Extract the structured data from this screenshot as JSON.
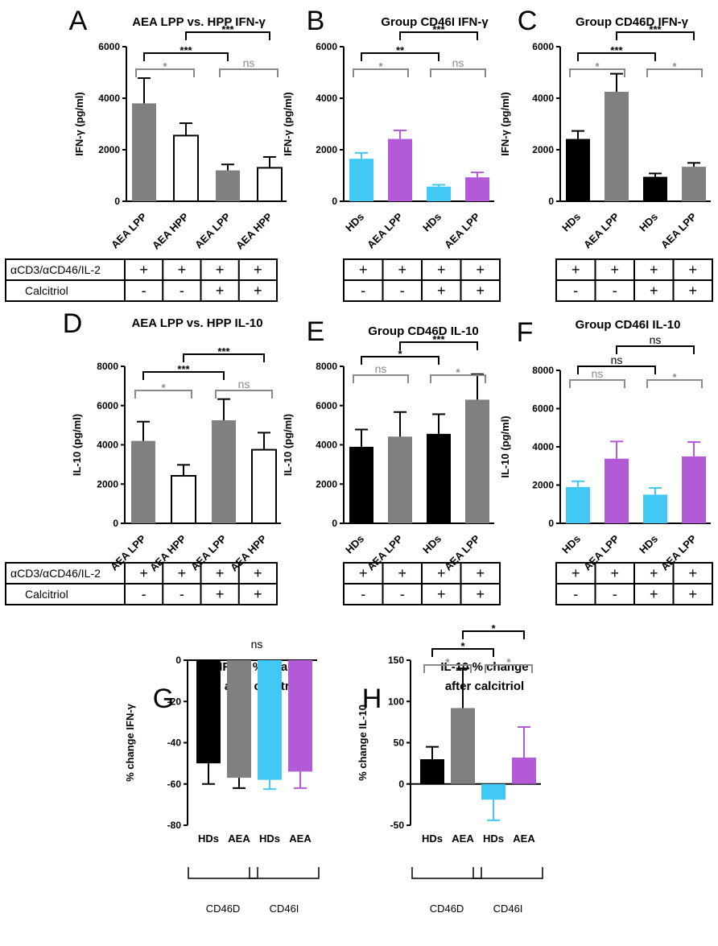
{
  "colors": {
    "grey": "#808080",
    "cyan": "#41c8f5",
    "purple": "#b35ad6",
    "black": "#000000",
    "white": "#ffffff",
    "sig_grey": "#8a8a8a"
  },
  "table": {
    "row1_label": "αCD3/αCD46/IL-2",
    "row2_label": "Calcitriol",
    "row1": [
      "+",
      "+",
      "+",
      "+"
    ],
    "row2": [
      "-",
      "-",
      "+",
      "+"
    ]
  },
  "chart_data": [
    {
      "id": "A",
      "type": "bar",
      "title": "AEA LPP vs. HPP IFN-γ",
      "ylabel": "IFN-γ (pg/ml)",
      "ylim": [
        0,
        6000
      ],
      "yticks": [
        0,
        2000,
        4000,
        6000
      ],
      "categories": [
        "AEA LPP",
        "AEA HPP",
        "AEA LPP",
        "AEA HPP"
      ],
      "values": [
        3800,
        2550,
        1200,
        1300
      ],
      "errors": [
        980,
        480,
        230,
        420
      ],
      "fills": [
        "grey",
        "white",
        "grey",
        "white"
      ],
      "sig": [
        {
          "from": 0,
          "to": 1,
          "level": 1,
          "label": "*",
          "color": "sig_grey"
        },
        {
          "from": 2,
          "to": 3,
          "level": 1,
          "label": "ns",
          "color": "sig_grey"
        },
        {
          "from": 0,
          "to": 2,
          "level": 2,
          "label": "***",
          "color": "black"
        },
        {
          "from": 1,
          "to": 3,
          "level": 3,
          "label": "***",
          "color": "black"
        }
      ],
      "table": true
    },
    {
      "id": "B",
      "type": "bar",
      "title": "Group CD46I IFN-γ",
      "ylabel": "IFN-γ (pg/ml)",
      "ylim": [
        0,
        6000
      ],
      "yticks": [
        0,
        2000,
        4000,
        6000
      ],
      "categories": [
        "HDs",
        "AEA LPP",
        "HDs",
        "AEA LPP"
      ],
      "values": [
        1650,
        2420,
        570,
        930
      ],
      "errors": [
        230,
        330,
        70,
        190
      ],
      "fills": [
        "cyan",
        "purple",
        "cyan",
        "purple"
      ],
      "sig": [
        {
          "from": 0,
          "to": 1,
          "level": 1,
          "label": "*",
          "color": "sig_grey"
        },
        {
          "from": 2,
          "to": 3,
          "level": 1,
          "label": "ns",
          "color": "sig_grey"
        },
        {
          "from": 0,
          "to": 2,
          "level": 2,
          "label": "**",
          "color": "black"
        },
        {
          "from": 1,
          "to": 3,
          "level": 3,
          "label": "***",
          "color": "black"
        }
      ],
      "table": true
    },
    {
      "id": "C",
      "type": "bar",
      "title": "Group CD46D IFN-γ",
      "ylabel": "IFN-γ (pg/ml)",
      "ylim": [
        0,
        6000
      ],
      "yticks": [
        0,
        2000,
        4000,
        6000
      ],
      "categories": [
        "HDs",
        "AEA LPP",
        "HDs",
        "AEA LPP"
      ],
      "values": [
        2420,
        4250,
        950,
        1340
      ],
      "errors": [
        310,
        700,
        130,
        150
      ],
      "fills": [
        "black",
        "grey",
        "black",
        "grey"
      ],
      "sig": [
        {
          "from": 0,
          "to": 1,
          "level": 1,
          "label": "*",
          "color": "sig_grey"
        },
        {
          "from": 2,
          "to": 3,
          "level": 1,
          "label": "*",
          "color": "sig_grey"
        },
        {
          "from": 0,
          "to": 2,
          "level": 2,
          "label": "***",
          "color": "black"
        },
        {
          "from": 1,
          "to": 3,
          "level": 3,
          "label": "***",
          "color": "black"
        }
      ],
      "table": true
    },
    {
      "id": "D",
      "type": "bar",
      "title": "AEA LPP vs. HPP IL-10",
      "ylabel": "IL-10 (pg/ml)",
      "ylim": [
        0,
        8000
      ],
      "yticks": [
        0,
        2000,
        4000,
        6000,
        8000
      ],
      "categories": [
        "AEA LPP",
        "AEA HPP",
        "AEA LPP",
        "AEA HPP"
      ],
      "values": [
        4200,
        2420,
        5250,
        3750
      ],
      "errors": [
        980,
        560,
        1080,
        870
      ],
      "fills": [
        "grey",
        "white",
        "grey",
        "white"
      ],
      "sig": [
        {
          "from": 0,
          "to": 1,
          "level": 1,
          "label": "*",
          "color": "sig_grey"
        },
        {
          "from": 2,
          "to": 3,
          "level": 1,
          "label": "ns",
          "color": "sig_grey"
        },
        {
          "from": 0,
          "to": 2,
          "level": 2,
          "label": "***",
          "color": "black"
        },
        {
          "from": 1,
          "to": 3,
          "level": 3,
          "label": "***",
          "color": "black"
        }
      ],
      "table": true
    },
    {
      "id": "E",
      "type": "bar",
      "title": "Group CD46D IL-10",
      "ylabel": "IL-10 (pg/ml)",
      "ylim": [
        0,
        8000
      ],
      "yticks": [
        0,
        2000,
        4000,
        6000,
        8000
      ],
      "categories": [
        "HDs",
        "AEA LPP",
        "HDs",
        "AEA LPP"
      ],
      "values": [
        3900,
        4420,
        4560,
        6300
      ],
      "errors": [
        880,
        1250,
        1000,
        1300
      ],
      "fills": [
        "black",
        "grey",
        "black",
        "grey"
      ],
      "sig": [
        {
          "from": 0,
          "to": 1,
          "level": 1,
          "label": "ns",
          "color": "sig_grey"
        },
        {
          "from": 2,
          "to": 3,
          "level": 1,
          "label": "*",
          "color": "sig_grey"
        },
        {
          "from": 0,
          "to": 2,
          "level": 2,
          "label": "*",
          "color": "black"
        },
        {
          "from": 1,
          "to": 3,
          "level": 3,
          "label": "***",
          "color": "black"
        }
      ],
      "table": true
    },
    {
      "id": "F",
      "type": "bar",
      "title": "Group CD46I IL-10",
      "ylabel": "IL-10 (pg/ml)",
      "ylim": [
        0,
        8000
      ],
      "yticks": [
        0,
        2000,
        4000,
        6000,
        8000
      ],
      "categories": [
        "HDs",
        "AEA LPP",
        "HDs",
        "AEA LPP"
      ],
      "values": [
        1900,
        3380,
        1500,
        3500
      ],
      "errors": [
        300,
        900,
        350,
        750
      ],
      "fills": [
        "cyan",
        "purple",
        "cyan",
        "purple"
      ],
      "sig": [
        {
          "from": 0,
          "to": 1,
          "level": 1,
          "label": "ns",
          "color": "sig_grey"
        },
        {
          "from": 2,
          "to": 3,
          "level": 1,
          "label": "*",
          "color": "sig_grey"
        },
        {
          "from": 0,
          "to": 2,
          "level": 2,
          "label": "ns",
          "color": "black"
        },
        {
          "from": 1,
          "to": 3,
          "level": 3,
          "label": "ns",
          "color": "black"
        }
      ],
      "table": true
    },
    {
      "id": "G",
      "type": "bar",
      "title": "IFN-γ % change",
      "title2": "after calcitriol",
      "ylabel": "% change IFN-γ",
      "ylim": [
        -80,
        0
      ],
      "yticks": [
        -80,
        -60,
        -40,
        -20,
        0
      ],
      "categories": [
        "HDs",
        "AEA",
        "HDs",
        "AEA"
      ],
      "values": [
        -50,
        -57,
        -58,
        -54
      ],
      "errors": [
        10,
        5,
        4.5,
        8
      ],
      "fills": [
        "black",
        "grey",
        "cyan",
        "purple"
      ],
      "sig": [],
      "overall": "ns",
      "groups": [
        "CD46D",
        "CD46I"
      ],
      "table": false
    },
    {
      "id": "H",
      "type": "bar",
      "title": "IL-10 % change",
      "title2": "after calcitriol",
      "ylabel": "% change IL-10",
      "ylim": [
        -50,
        150
      ],
      "yticks": [
        -50,
        0,
        50,
        100,
        150
      ],
      "categories": [
        "HDs",
        "AEA",
        "HDs",
        "AEA"
      ],
      "values": [
        30,
        92,
        -19,
        32
      ],
      "errors": [
        15,
        48,
        25,
        37
      ],
      "fills": [
        "black",
        "grey",
        "cyan",
        "purple"
      ],
      "sig": [
        {
          "from": 0,
          "to": 1,
          "level": 1,
          "label": "*",
          "color": "sig_grey"
        },
        {
          "from": 2,
          "to": 3,
          "level": 1,
          "label": "*",
          "color": "sig_grey"
        },
        {
          "from": 0,
          "to": 2,
          "level": 2,
          "label": "*",
          "color": "black"
        },
        {
          "from": 1,
          "to": 3,
          "level": 3,
          "label": "*",
          "color": "black"
        }
      ],
      "groups": [
        "CD46D",
        "CD46I"
      ],
      "table": false
    }
  ]
}
